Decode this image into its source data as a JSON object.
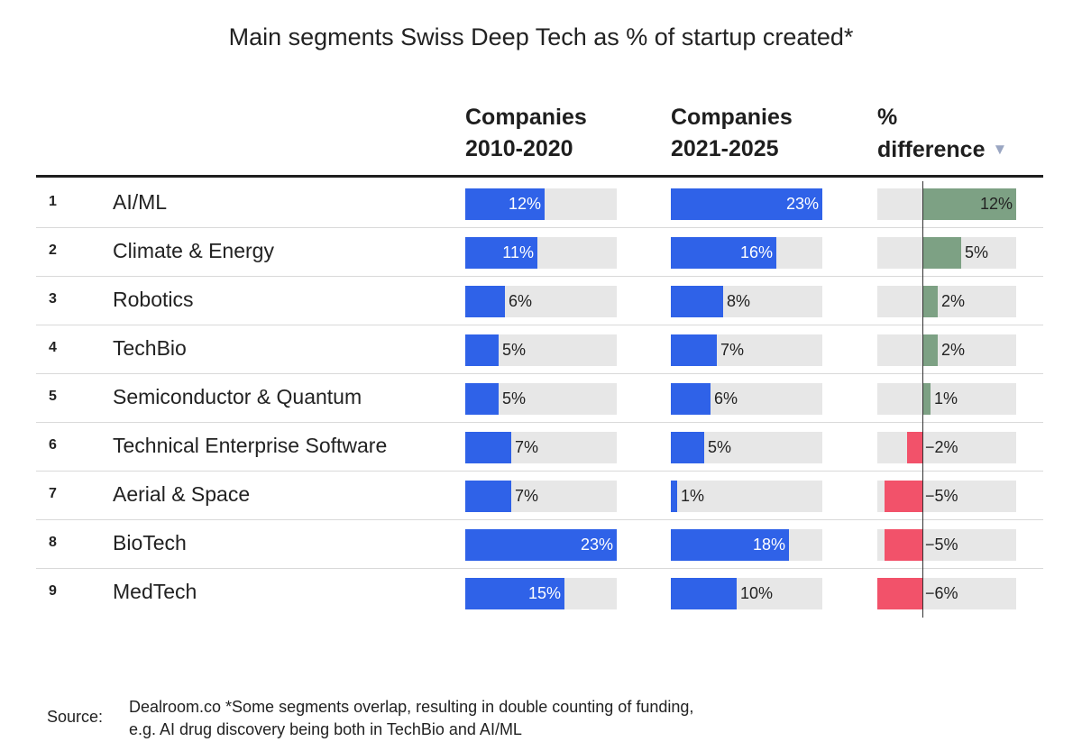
{
  "title": "Main segments Swiss Deep Tech as % of startup created*",
  "columns": {
    "c2010": [
      "Companies",
      "2010-2020"
    ],
    "c2021": [
      "Companies",
      "2021-2025"
    ],
    "diff": [
      "%",
      "difference"
    ]
  },
  "sort_icon": "sort-descending-icon",
  "colors": {
    "bar": "#2f62e8",
    "positive": "#7da184",
    "negative": "#f2526a",
    "track": "#e7e7e7"
  },
  "chart_data": {
    "type": "bar",
    "title": "Main segments Swiss Deep Tech as % of startup created*",
    "value_max": 23,
    "diff_max": 12,
    "rows": [
      {
        "rank": "1",
        "segment": "AI/ML",
        "v2010": 12,
        "v2021": 23,
        "diff": 12,
        "t2010": "12%",
        "t2021": "23%",
        "tdiff": "12%"
      },
      {
        "rank": "2",
        "segment": "Climate & Energy",
        "v2010": 11,
        "v2021": 16,
        "diff": 5,
        "t2010": "11%",
        "t2021": "16%",
        "tdiff": "5%"
      },
      {
        "rank": "3",
        "segment": "Robotics",
        "v2010": 6,
        "v2021": 8,
        "diff": 2,
        "t2010": "6%",
        "t2021": "8%",
        "tdiff": "2%"
      },
      {
        "rank": "4",
        "segment": "TechBio",
        "v2010": 5,
        "v2021": 7,
        "diff": 2,
        "t2010": "5%",
        "t2021": "7%",
        "tdiff": "2%"
      },
      {
        "rank": "5",
        "segment": "Semiconductor & Quantum",
        "v2010": 5,
        "v2021": 6,
        "diff": 1,
        "t2010": "5%",
        "t2021": "6%",
        "tdiff": "1%"
      },
      {
        "rank": "6",
        "segment": "Technical Enterprise Software",
        "v2010": 7,
        "v2021": 5,
        "diff": -2,
        "t2010": "7%",
        "t2021": "5%",
        "tdiff": "−2%"
      },
      {
        "rank": "7",
        "segment": "Aerial & Space",
        "v2010": 7,
        "v2021": 1,
        "diff": -5,
        "t2010": "7%",
        "t2021": "1%",
        "tdiff": "−5%"
      },
      {
        "rank": "8",
        "segment": "BioTech",
        "v2010": 23,
        "v2021": 18,
        "diff": -5,
        "t2010": "23%",
        "t2021": "18%",
        "tdiff": "−5%"
      },
      {
        "rank": "9",
        "segment": "MedTech",
        "v2010": 15,
        "v2021": 10,
        "diff": -6,
        "t2010": "15%",
        "t2021": "10%",
        "tdiff": "−6%"
      }
    ]
  },
  "source": {
    "label": "Source:",
    "line1": "Dealroom.co *Some segments overlap, resulting in double counting of funding,",
    "line2": "e.g. AI drug discovery being both in TechBio and AI/ML"
  }
}
